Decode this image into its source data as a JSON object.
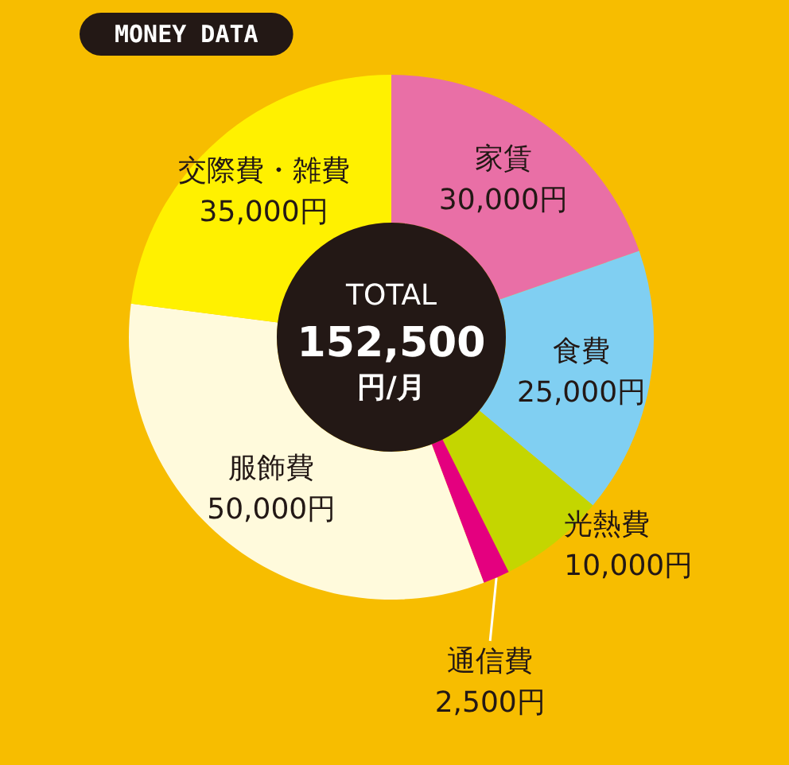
{
  "chart_data": {
    "type": "donut",
    "title": "MONEY DATA",
    "categories": [
      "家賃",
      "食費",
      "光熱費",
      "通信費",
      "服飾費",
      "交際費・雑費"
    ],
    "values": [
      30000,
      25000,
      10000,
      2500,
      50000,
      35000
    ],
    "colors": [
      "#e96fa6",
      "#80cff2",
      "#c4d600",
      "#e4007f",
      "#fffadc",
      "#fff100"
    ],
    "value_labels": [
      "30,000円",
      "25,000円",
      "10,000円",
      "2,500円",
      "50,000円",
      "35,000円"
    ],
    "annotations": [
      "TOTAL",
      "152,500",
      "円/月"
    ],
    "legend": false
  }
}
